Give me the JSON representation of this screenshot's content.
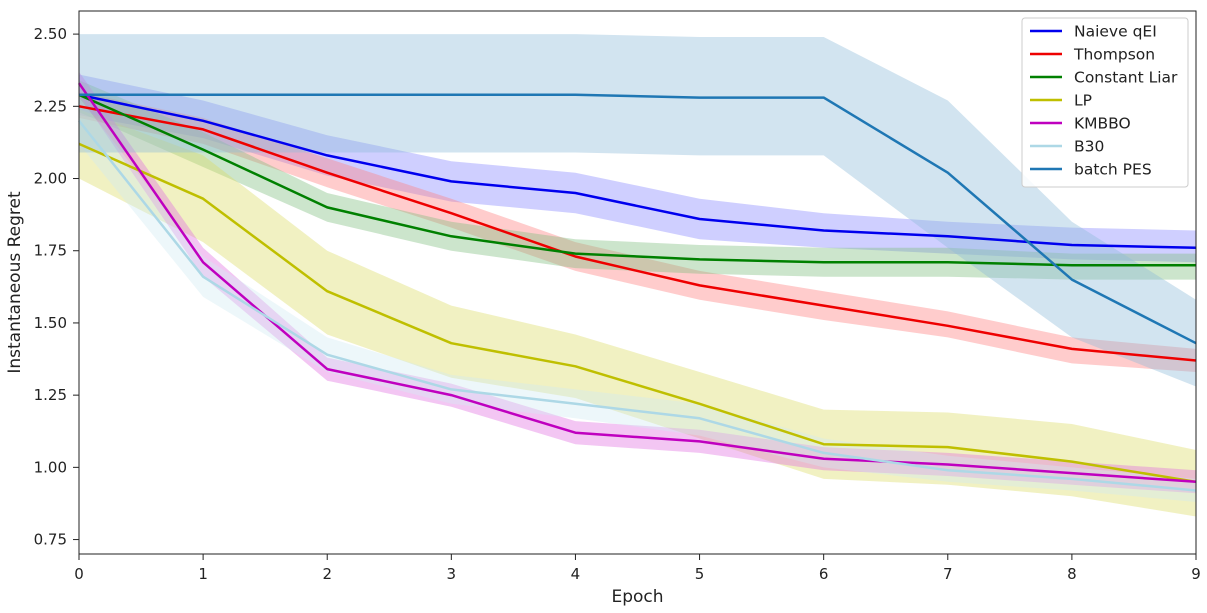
{
  "chart_data": {
    "type": "line",
    "xlabel": "Epoch",
    "ylabel": "Instantaneous Regret",
    "xlim": [
      0,
      9
    ],
    "ylim": [
      0.7,
      2.58
    ],
    "xticks": [
      "0",
      "1",
      "2",
      "3",
      "4",
      "5",
      "6",
      "7",
      "8",
      "9"
    ],
    "yticks": [
      "0.75",
      "1.00",
      "1.25",
      "1.50",
      "1.75",
      "2.00",
      "2.25",
      "2.50"
    ],
    "grid": false,
    "legend_position": "top-right",
    "x": [
      0,
      1,
      2,
      3,
      4,
      5,
      6,
      7,
      8,
      9
    ],
    "series": [
      {
        "name": "Naieve qEI",
        "color": "#0000ee",
        "band_color": "#8888ff",
        "mean": [
          2.29,
          2.2,
          2.08,
          1.99,
          1.95,
          1.86,
          1.82,
          1.8,
          1.77,
          1.76
        ],
        "lower": [
          2.22,
          2.14,
          2.01,
          1.92,
          1.88,
          1.79,
          1.76,
          1.74,
          1.72,
          1.71
        ],
        "upper": [
          2.36,
          2.27,
          2.15,
          2.06,
          2.02,
          1.93,
          1.88,
          1.85,
          1.83,
          1.82
        ]
      },
      {
        "name": "Thompson",
        "color": "#ee0000",
        "band_color": "#ff8080",
        "mean": [
          2.25,
          2.17,
          2.02,
          1.88,
          1.73,
          1.63,
          1.56,
          1.49,
          1.41,
          1.37
        ],
        "lower": [
          2.21,
          2.12,
          1.97,
          1.83,
          1.68,
          1.58,
          1.51,
          1.45,
          1.36,
          1.33
        ],
        "upper": [
          2.3,
          2.21,
          2.07,
          1.93,
          1.78,
          1.68,
          1.61,
          1.54,
          1.45,
          1.41
        ]
      },
      {
        "name": "Constant Liar",
        "color": "#008000",
        "band_color": "#7fbf7f",
        "mean": [
          2.29,
          2.1,
          1.9,
          1.8,
          1.74,
          1.72,
          1.71,
          1.71,
          1.7,
          1.7
        ],
        "lower": [
          2.23,
          2.04,
          1.85,
          1.75,
          1.69,
          1.67,
          1.66,
          1.66,
          1.65,
          1.65
        ],
        "upper": [
          2.34,
          2.16,
          1.95,
          1.85,
          1.79,
          1.77,
          1.76,
          1.76,
          1.74,
          1.74
        ]
      },
      {
        "name": "LP",
        "color": "#bfbf00",
        "band_color": "#dddd66",
        "mean": [
          2.12,
          1.93,
          1.61,
          1.43,
          1.35,
          1.22,
          1.08,
          1.07,
          1.02,
          0.95
        ],
        "lower": [
          2.0,
          1.78,
          1.46,
          1.31,
          1.24,
          1.1,
          0.96,
          0.94,
          0.9,
          0.83
        ],
        "upper": [
          2.24,
          2.08,
          1.75,
          1.56,
          1.46,
          1.33,
          1.2,
          1.19,
          1.15,
          1.06
        ]
      },
      {
        "name": "KMBBO",
        "color": "#bf00bf",
        "band_color": "#e070e0",
        "mean": [
          2.33,
          1.71,
          1.34,
          1.25,
          1.12,
          1.09,
          1.03,
          1.01,
          0.98,
          0.95
        ],
        "lower": [
          2.29,
          1.66,
          1.3,
          1.21,
          1.08,
          1.05,
          0.99,
          0.97,
          0.94,
          0.91
        ],
        "upper": [
          2.37,
          1.76,
          1.38,
          1.29,
          1.16,
          1.13,
          1.07,
          1.05,
          1.02,
          0.99
        ]
      },
      {
        "name": "B30",
        "color": "#add8e6",
        "band_color": "#d2ebf3",
        "mean": [
          2.2,
          1.66,
          1.39,
          1.27,
          1.22,
          1.17,
          1.05,
          0.99,
          0.96,
          0.92
        ],
        "lower": [
          2.12,
          1.59,
          1.33,
          1.22,
          1.17,
          1.11,
          1.0,
          0.95,
          0.92,
          0.88
        ],
        "upper": [
          2.28,
          1.73,
          1.45,
          1.32,
          1.27,
          1.22,
          1.1,
          1.04,
          1.0,
          0.96
        ]
      },
      {
        "name": "batch PES",
        "color": "#1f77b4",
        "band_color": "#8fbbd9",
        "mean": [
          2.29,
          2.29,
          2.29,
          2.29,
          2.29,
          2.28,
          2.28,
          2.02,
          1.65,
          1.43
        ],
        "lower": [
          2.09,
          2.09,
          2.09,
          2.09,
          2.09,
          2.08,
          2.08,
          1.76,
          1.45,
          1.28
        ],
        "upper": [
          2.5,
          2.5,
          2.5,
          2.5,
          2.5,
          2.49,
          2.49,
          2.27,
          1.85,
          1.58
        ]
      }
    ]
  }
}
